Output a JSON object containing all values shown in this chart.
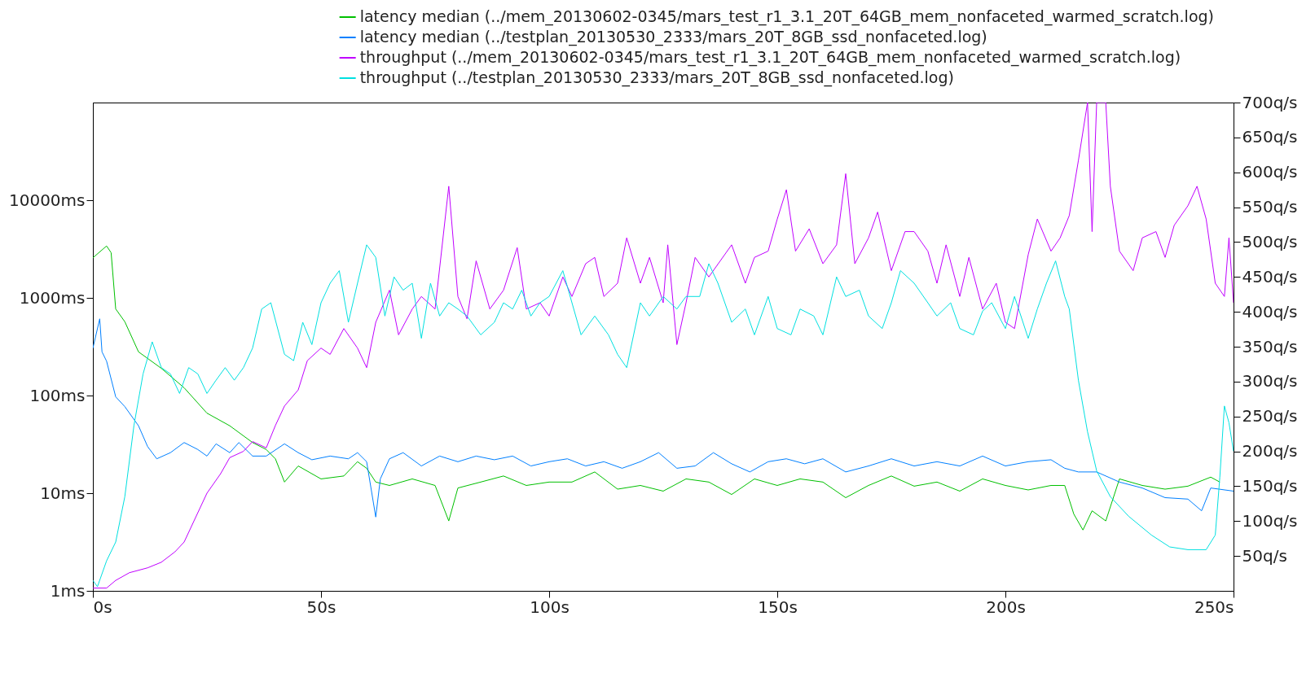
{
  "chart_data": {
    "type": "line",
    "log": "y",
    "grid": false,
    "legend": "top right",
    "xlim": [
      0,
      250
    ],
    "xticks": [
      {
        "value": 0,
        "label": "0s"
      },
      {
        "value": 50,
        "label": "50s"
      },
      {
        "value": 100,
        "label": "100s"
      },
      {
        "value": 150,
        "label": "150s"
      },
      {
        "value": 200,
        "label": "200s"
      },
      {
        "value": 250,
        "label": "250s"
      }
    ],
    "ylim": [
      1,
      100000
    ],
    "yticks": [
      {
        "value": 1,
        "label": "1ms"
      },
      {
        "value": 10,
        "label": "10ms"
      },
      {
        "value": 100,
        "label": "100ms"
      },
      {
        "value": 1000,
        "label": "1000ms"
      },
      {
        "value": 10000,
        "label": "10000ms"
      }
    ],
    "y2lim": [
      0,
      700
    ],
    "y2ticks": [
      {
        "value": 50,
        "label": "50q/s"
      },
      {
        "value": 100,
        "label": "100q/s"
      },
      {
        "value": 150,
        "label": "150q/s"
      },
      {
        "value": 200,
        "label": "200q/s"
      },
      {
        "value": 250,
        "label": "250q/s"
      },
      {
        "value": 300,
        "label": "300q/s"
      },
      {
        "value": 350,
        "label": "350q/s"
      },
      {
        "value": 400,
        "label": "400q/s"
      },
      {
        "value": 450,
        "label": "450q/s"
      },
      {
        "value": 500,
        "label": "500q/s"
      },
      {
        "value": 550,
        "label": "550q/s"
      },
      {
        "value": 600,
        "label": "600q/s"
      },
      {
        "value": 650,
        "label": "650q/s"
      },
      {
        "value": 700,
        "label": "700q/s"
      }
    ],
    "series": [
      {
        "name": "latency median (../mem_20130602-0345/mars_test_r1_3.1_20T_64GB_mem_nonfaceted_warmed_scratch.log)",
        "color": "#00c000",
        "x": [
          0,
          3,
          4,
          5,
          7,
          10,
          15,
          20,
          25,
          30,
          35,
          38,
          40,
          42,
          45,
          50,
          55,
          58,
          60,
          62,
          65,
          70,
          75,
          78,
          80,
          85,
          90,
          95,
          100,
          105,
          110,
          115,
          120,
          125,
          130,
          135,
          140,
          145,
          150,
          155,
          160,
          165,
          170,
          175,
          180,
          185,
          190,
          195,
          200,
          205,
          210,
          213,
          215,
          217,
          219,
          222,
          225,
          230,
          235,
          240,
          245,
          247
        ],
        "values": [
          2570,
          3400,
          2900,
          770,
          570,
          280,
          190,
          120,
          66,
          49,
          33,
          28,
          22.5,
          13,
          19,
          14,
          15,
          21,
          18,
          13,
          12,
          14,
          12,
          5.2,
          11.3,
          13,
          15,
          12,
          13,
          13,
          16.5,
          11,
          12,
          10.5,
          14,
          13,
          9.7,
          14,
          12,
          14,
          13,
          9,
          12,
          15,
          11.8,
          13,
          10.5,
          14,
          12,
          10.8,
          12,
          12,
          6.1,
          4.2,
          6.6,
          5.2,
          14,
          12,
          11,
          11.8,
          14.6,
          13
        ]
      },
      {
        "name": "latency median (../testplan_20130530_2333/mars_20T_8GB_ssd_nonfaceted.log)",
        "color": "#0080ff",
        "x": [
          0,
          1.5,
          2,
          3,
          5,
          7,
          10,
          12,
          14,
          17,
          20,
          23,
          25,
          27,
          30,
          32,
          35,
          38,
          42,
          45,
          48,
          52,
          56,
          58,
          60,
          62,
          63,
          65,
          68,
          72,
          76,
          80,
          84,
          88,
          92,
          96,
          100,
          104,
          108,
          112,
          116,
          120,
          124,
          128,
          132,
          136,
          140,
          144,
          148,
          152,
          156,
          160,
          165,
          170,
          175,
          180,
          185,
          190,
          195,
          200,
          205,
          210,
          213,
          216,
          220,
          225,
          230,
          235,
          240,
          243,
          245,
          250
        ],
        "values": [
          305,
          610,
          280,
          225,
          97,
          77,
          49,
          30,
          22.5,
          26,
          33,
          28,
          24,
          32,
          26,
          33,
          24,
          24,
          32,
          26,
          22,
          24,
          22.5,
          26,
          21,
          5.7,
          14,
          22.5,
          26,
          19,
          24,
          21,
          24,
          22,
          24,
          19,
          21,
          22.5,
          19,
          21,
          18,
          21,
          26,
          18,
          19,
          26,
          20,
          16.5,
          21,
          22.5,
          20,
          22.5,
          16.5,
          19,
          22.5,
          19,
          21,
          19,
          24,
          19,
          21,
          22,
          18,
          16.5,
          16.5,
          13,
          11.3,
          9,
          8.7,
          6.6,
          11.3,
          10.5
        ]
      },
      {
        "name": "throughput (../mem_20130602-0345/mars_test_r1_3.1_20T_64GB_mem_nonfaceted_warmed_scratch.log)",
        "color": "#c000ff",
        "axis": "y2",
        "x": [
          0,
          3,
          5,
          8,
          12,
          15,
          18,
          20,
          22,
          25,
          28,
          30,
          33,
          35,
          38,
          40,
          42,
          45,
          47,
          50,
          52,
          55,
          58,
          60,
          62,
          65,
          67,
          70,
          72,
          75,
          78,
          80,
          82,
          84,
          87,
          90,
          93,
          95,
          98,
          100,
          103,
          105,
          108,
          110,
          112,
          115,
          117,
          120,
          122,
          125,
          126,
          128,
          130,
          132,
          135,
          140,
          143,
          145,
          148,
          150,
          152,
          154,
          157,
          160,
          163,
          165,
          167,
          170,
          172,
          175,
          178,
          180,
          183,
          185,
          187,
          190,
          192,
          195,
          198,
          200,
          202,
          205,
          207,
          210,
          212,
          214,
          216,
          218,
          219,
          220,
          222,
          223,
          225,
          228,
          230,
          233,
          235,
          237,
          240,
          242,
          244,
          246,
          248,
          249,
          250
        ],
        "values": [
          4,
          4,
          15,
          26,
          33,
          41,
          56,
          70,
          98,
          140,
          168,
          191,
          200,
          214,
          205,
          237,
          265,
          288,
          330,
          348,
          339,
          376,
          348,
          320,
          385,
          431,
          367,
          404,
          422,
          404,
          580,
          422,
          390,
          473,
          404,
          431,
          492,
          404,
          413,
          394,
          450,
          422,
          469,
          478,
          422,
          441,
          506,
          441,
          478,
          413,
          496,
          353,
          413,
          478,
          450,
          496,
          441,
          478,
          487,
          533,
          575,
          487,
          519,
          469,
          496,
          598,
          469,
          506,
          543,
          459,
          515,
          515,
          487,
          441,
          496,
          422,
          478,
          404,
          441,
          385,
          376,
          482,
          533,
          487,
          506,
          538,
          617,
          700,
          515,
          700,
          700,
          580,
          487,
          459,
          506,
          515,
          478,
          524,
          552,
          580,
          533,
          441,
          422,
          506,
          413
        ]
      },
      {
        "name": "throughput (../testplan_20130530_2333/mars_20T_8GB_ssd_nonfaceted.log)",
        "color": "#00e0e0",
        "axis": "y2",
        "x": [
          0,
          1,
          3,
          5,
          7,
          9,
          11,
          13,
          15,
          17,
          19,
          21,
          23,
          25,
          27,
          29,
          31,
          33,
          35,
          37,
          39,
          42,
          44,
          46,
          48,
          50,
          52,
          54,
          56,
          58,
          60,
          62,
          64,
          66,
          68,
          70,
          72,
          74,
          76,
          78,
          80,
          82,
          85,
          88,
          90,
          92,
          94,
          96,
          98,
          100,
          103,
          105,
          107,
          110,
          113,
          115,
          117,
          120,
          122,
          125,
          128,
          130,
          133,
          135,
          137,
          140,
          143,
          145,
          148,
          150,
          153,
          155,
          158,
          160,
          163,
          165,
          168,
          170,
          173,
          175,
          177,
          180,
          183,
          185,
          188,
          190,
          193,
          195,
          197,
          200,
          202,
          205,
          207,
          209,
          211,
          213,
          214,
          216,
          218,
          220,
          223,
          227,
          232,
          236,
          240,
          244,
          246,
          247,
          248,
          249,
          250
        ],
        "values": [
          15,
          6,
          43,
          70,
          135,
          237,
          311,
          357,
          320,
          311,
          283,
          320,
          311,
          283,
          302,
          320,
          302,
          320,
          348,
          404,
          413,
          339,
          330,
          385,
          353,
          413,
          441,
          459,
          385,
          441,
          496,
          478,
          394,
          450,
          431,
          441,
          362,
          441,
          394,
          413,
          404,
          394,
          367,
          385,
          413,
          404,
          431,
          394,
          413,
          422,
          459,
          413,
          367,
          394,
          367,
          339,
          320,
          413,
          394,
          422,
          404,
          422,
          422,
          469,
          441,
          385,
          404,
          367,
          422,
          376,
          367,
          404,
          394,
          367,
          450,
          422,
          431,
          394,
          376,
          413,
          459,
          441,
          413,
          394,
          413,
          376,
          367,
          401,
          413,
          376,
          422,
          362,
          404,
          441,
          473,
          422,
          404,
          302,
          228,
          172,
          135,
          107,
          80,
          63,
          59,
          59,
          80,
          163,
          265,
          241,
          200
        ]
      }
    ]
  }
}
